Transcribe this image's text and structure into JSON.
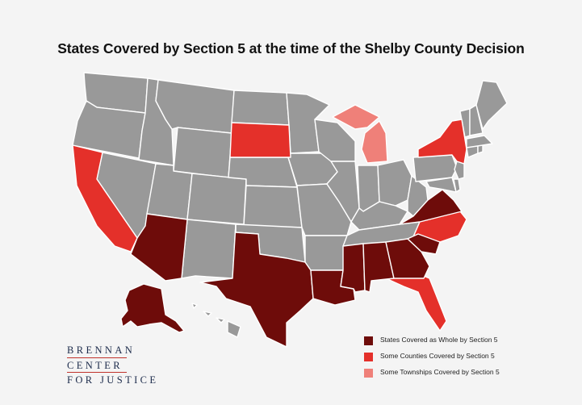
{
  "title": "States Covered by Section 5 at the time of the Shelby County Decision",
  "colors": {
    "whole": "#6e0c0a",
    "counties": "#e4302a",
    "townships": "#ef8079",
    "none": "#999999",
    "background": "#f4f4f4"
  },
  "legend": [
    {
      "label": "States Covered as Whole by Section 5",
      "color": "#6e0c0a"
    },
    {
      "label": "Some Counties Covered by Section 5",
      "color": "#e4302a"
    },
    {
      "label": "Some Townships Covered by Section 5",
      "color": "#ef8079"
    }
  ],
  "logo": {
    "line1": "BRENNAN",
    "line2": "CENTER",
    "line3": "FOR JUSTICE"
  }
}
